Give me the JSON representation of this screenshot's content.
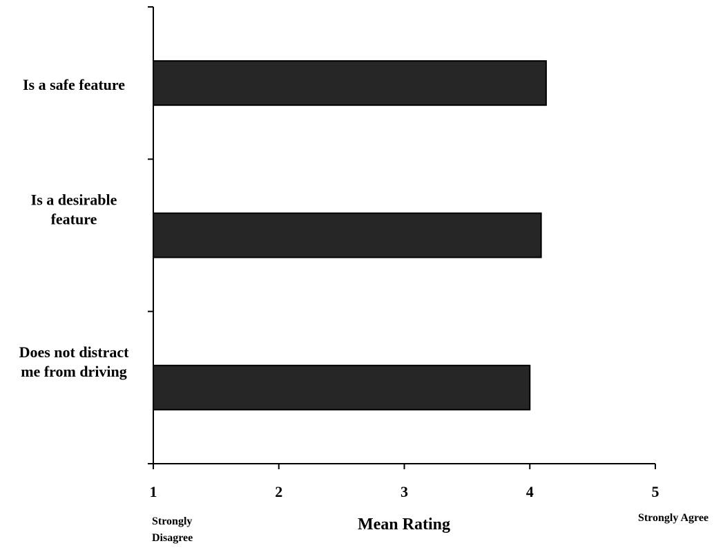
{
  "chart_data": {
    "type": "bar",
    "orientation": "horizontal",
    "categories": [
      [
        "Is a safe feature"
      ],
      [
        "Is a desirable",
        "feature"
      ],
      [
        "Does not distract",
        "me from driving"
      ]
    ],
    "values": [
      4.13,
      4.09,
      4.0
    ],
    "xlabel": "Mean Rating",
    "ylabel": "",
    "xlim": [
      1,
      5
    ],
    "xticks": [
      "1",
      "2",
      "3",
      "4",
      "5"
    ],
    "scale_anchors": {
      "low": [
        "Strongly",
        "Disagree"
      ],
      "high": [
        "Strongly Agree"
      ]
    },
    "bar_color": "#262626",
    "grid": false,
    "legend": "none"
  }
}
